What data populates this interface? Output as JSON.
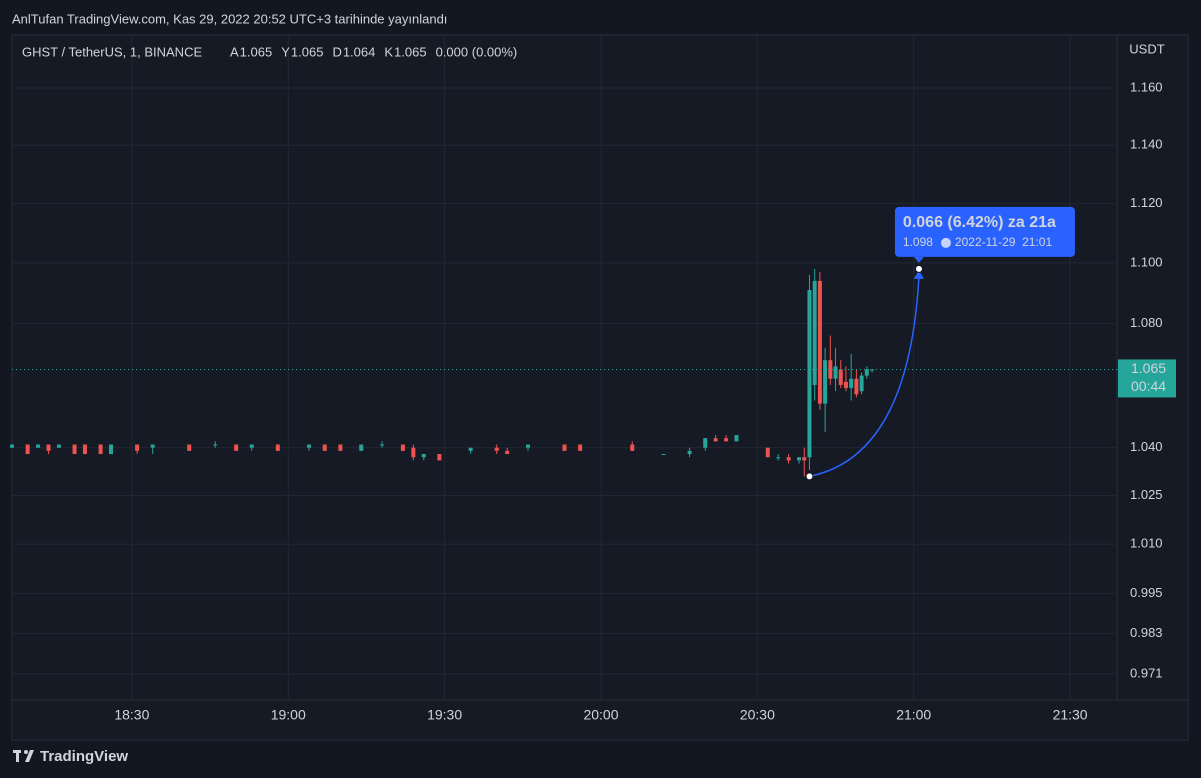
{
  "chart_data": {
    "type": "candlestick",
    "published": "AnlTufan TradingView.com, Kas 29, 2022 20:52 UTC+3 tarihinde yayınlandı",
    "symbol": "GHST / TetherUS, 1, BINANCE",
    "ohlc_labels": [
      "A",
      "Y",
      "D",
      "K"
    ],
    "change": "0.000 (0.00%)",
    "unit": "USDT",
    "brand": "TradingView",
    "up_color": "#26a69a",
    "down_color": "#ef5350",
    "log_scale": true,
    "grid": true,
    "candles": {
      "x": [
        "18:07",
        "18:10",
        "18:12",
        "18:14",
        "18:16",
        "18:19",
        "18:21",
        "18:24",
        "18:26",
        "18:31",
        "18:34",
        "18:41",
        "18:46",
        "18:50",
        "18:53",
        "18:58",
        "19:04",
        "19:07",
        "19:10",
        "19:14",
        "19:18",
        "19:22",
        "19:24",
        "19:26",
        "19:29",
        "19:35",
        "19:40",
        "19:42",
        "19:46",
        "19:53",
        "19:56",
        "20:06",
        "20:12",
        "20:17",
        "20:20",
        "20:22",
        "20:24",
        "20:26",
        "20:32",
        "20:34",
        "20:36",
        "20:38",
        "20:39",
        "20:40",
        "20:41",
        "20:42",
        "20:43",
        "20:44",
        "20:45",
        "20:46",
        "20:47",
        "20:48",
        "20:49",
        "20:50",
        "20:51",
        "20:52"
      ],
      "open": [
        1.04,
        1.041,
        1.04,
        1.041,
        1.04,
        1.041,
        1.041,
        1.041,
        1.038,
        1.041,
        1.04,
        1.041,
        1.041,
        1.041,
        1.04,
        1.041,
        1.04,
        1.041,
        1.041,
        1.039,
        1.041,
        1.041,
        1.04,
        1.037,
        1.038,
        1.039,
        1.04,
        1.039,
        1.04,
        1.041,
        1.041,
        1.041,
        1.038,
        1.038,
        1.04,
        1.043,
        1.043,
        1.042,
        1.04,
        1.037,
        1.037,
        1.036,
        1.037,
        1.037,
        1.06,
        1.094,
        1.054,
        1.068,
        1.062,
        1.065,
        1.061,
        1.059,
        1.062,
        1.058,
        1.063,
        1.065
      ],
      "high": [
        1.041,
        1.041,
        1.041,
        1.041,
        1.041,
        1.041,
        1.041,
        1.041,
        1.041,
        1.041,
        1.041,
        1.041,
        1.042,
        1.041,
        1.041,
        1.041,
        1.041,
        1.041,
        1.041,
        1.041,
        1.042,
        1.041,
        1.041,
        1.038,
        1.038,
        1.04,
        1.041,
        1.04,
        1.041,
        1.041,
        1.041,
        1.042,
        1.038,
        1.04,
        1.043,
        1.044,
        1.044,
        1.044,
        1.04,
        1.038,
        1.038,
        1.037,
        1.04,
        1.096,
        1.098,
        1.097,
        1.072,
        1.076,
        1.072,
        1.068,
        1.066,
        1.07,
        1.065,
        1.064,
        1.066,
        1.065
      ],
      "low": [
        1.04,
        1.038,
        1.04,
        1.038,
        1.04,
        1.038,
        1.038,
        1.038,
        1.038,
        1.038,
        1.038,
        1.039,
        1.04,
        1.039,
        1.039,
        1.039,
        1.039,
        1.039,
        1.039,
        1.039,
        1.04,
        1.039,
        1.036,
        1.036,
        1.036,
        1.038,
        1.038,
        1.038,
        1.039,
        1.039,
        1.039,
        1.039,
        1.038,
        1.037,
        1.039,
        1.042,
        1.042,
        1.042,
        1.037,
        1.036,
        1.035,
        1.035,
        1.031,
        1.033,
        1.055,
        1.052,
        1.045,
        1.06,
        1.058,
        1.059,
        1.058,
        1.055,
        1.056,
        1.057,
        1.062,
        1.064
      ],
      "close": [
        1.041,
        1.038,
        1.041,
        1.039,
        1.041,
        1.038,
        1.038,
        1.038,
        1.041,
        1.039,
        1.041,
        1.039,
        1.041,
        1.039,
        1.041,
        1.039,
        1.041,
        1.039,
        1.039,
        1.041,
        1.041,
        1.039,
        1.037,
        1.038,
        1.036,
        1.04,
        1.039,
        1.038,
        1.041,
        1.039,
        1.039,
        1.039,
        1.038,
        1.039,
        1.043,
        1.042,
        1.042,
        1.044,
        1.037,
        1.037,
        1.036,
        1.037,
        1.036,
        1.091,
        1.094,
        1.054,
        1.068,
        1.062,
        1.066,
        1.06,
        1.059,
        1.062,
        1.057,
        1.063,
        1.065,
        1.065
      ]
    },
    "last_price": 1.065,
    "countdown": "00:44",
    "xlim": [
      "18:07",
      "21:39"
    ],
    "xticks": [
      "18:30",
      "19:00",
      "19:30",
      "20:00",
      "20:30",
      "21:00",
      "21:30"
    ],
    "ylim": [
      0.9642,
      1.1788
    ],
    "yticks": [
      {
        "value": 1.16,
        "label": "1.160"
      },
      {
        "value": 1.14,
        "label": "1.140"
      },
      {
        "value": 1.12,
        "label": "1.120"
      },
      {
        "value": 1.1,
        "label": "1.100"
      },
      {
        "value": 1.08,
        "label": "1.080"
      },
      {
        "value": 1.04,
        "label": "1.040"
      },
      1.025,
      {
        "value": 1.01,
        "label": "1.010"
      },
      0.995,
      0.983,
      0.971
    ],
    "measure": {
      "color": "#2962ff",
      "from": {
        "x": "20:40",
        "y": 1.031
      },
      "to": {
        "x": "21:01",
        "y": 1.098
      },
      "label": "0.066 (6.42%) za 21a",
      "date": "2022-11-29  21:01"
    }
  }
}
